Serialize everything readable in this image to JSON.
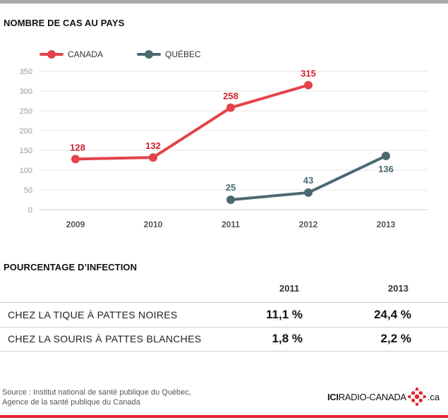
{
  "chart_title": "NOMBRE DE CAS AU PAYS",
  "chart_data": {
    "type": "line",
    "categories": [
      "2009",
      "2010",
      "2011",
      "2012",
      "2013"
    ],
    "ylim": [
      0,
      350
    ],
    "yticks": [
      "0",
      "50",
      "100",
      "150",
      "200",
      "250",
      "300",
      "350"
    ],
    "grid": true,
    "legend_position": "top-left",
    "series": [
      {
        "name": "CANADA",
        "color": "#e3434a",
        "values": [
          128,
          132,
          258,
          315,
          null
        ]
      },
      {
        "name": "QUÉBEC",
        "color": "#4a6a72",
        "values": [
          null,
          null,
          25,
          43,
          136
        ]
      }
    ]
  },
  "table": {
    "title": "POURCENTAGE D’INFECTION",
    "years": [
      "2011",
      "2013"
    ],
    "rows": [
      {
        "label": "CHEZ LA TIQUE À PATTES NOIRES",
        "v2011": "11,1 %",
        "v2013": "24,4 %"
      },
      {
        "label": "CHEZ LA SOURIS À PATTES BLANCHES",
        "v2011": "1,8 %",
        "v2013": "2,2 %"
      }
    ]
  },
  "footer": {
    "source_line1": "Source :   Institut national de santé publique du Québec,",
    "source_line2": "Agence de la santé publique du Canada",
    "logo_ici": "ICI",
    "logo_name": "RADIO-CANADA",
    "logo_domain": ".ca",
    "logo_color": "#e3202e"
  }
}
